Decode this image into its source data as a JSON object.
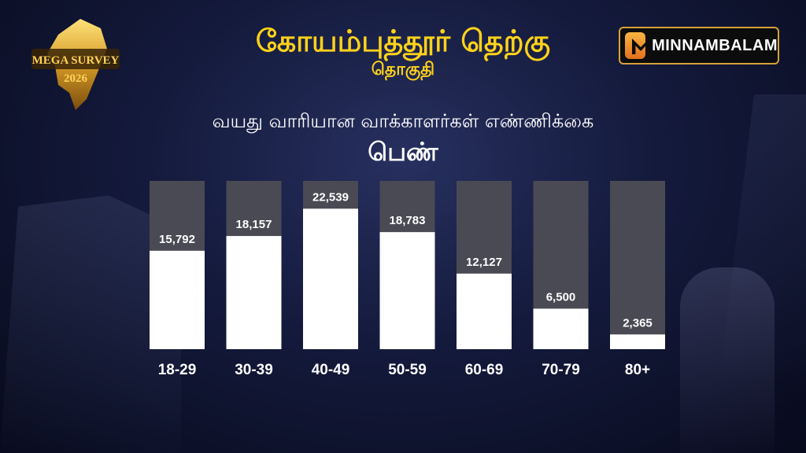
{
  "header": {
    "title": "கோயம்புத்தூர் தெற்கு",
    "subtitle": "தொகுதி",
    "heading": "வயது வாரியான வாக்காளர்கள் எண்ணிக்கை",
    "gender": "பெண்"
  },
  "logos": {
    "left_line1": "MEGA SURVEY",
    "left_line2": "2026",
    "right": "MINNAMBALAM"
  },
  "colors": {
    "title": "#ffd21a",
    "bar_fill": "#ffffff",
    "bar_track": "#4a4a54",
    "label": "#ffffff"
  },
  "chart_data": {
    "type": "bar",
    "categories": [
      "18-29",
      "30-39",
      "40-49",
      "50-59",
      "60-69",
      "70-79",
      "80+"
    ],
    "values": [
      15792,
      18157,
      22539,
      18783,
      12127,
      6500,
      2365
    ],
    "value_labels": [
      "15,792",
      "18,157",
      "22,539",
      "18,783",
      "12,127",
      "6,500",
      "2,365"
    ],
    "title": "வயது வாரியான வாக்காளர்கள் எண்ணிக்கை",
    "xlabel": "",
    "ylabel": "",
    "ylim": [
      0,
      27000
    ],
    "grid": false,
    "legend": "none"
  }
}
